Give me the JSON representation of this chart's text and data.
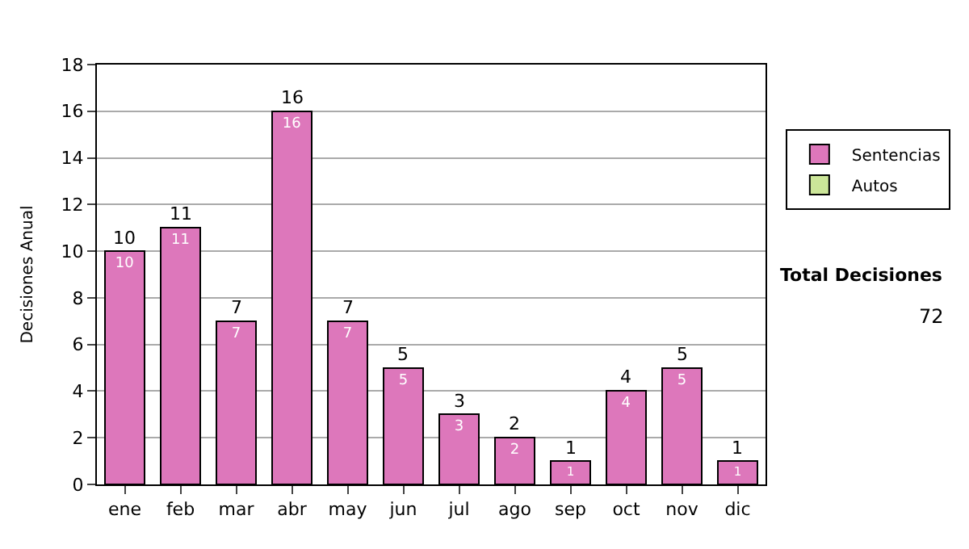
{
  "chart_data": {
    "type": "bar",
    "stacked": true,
    "ylabel": "Decisiones Anual",
    "categories": [
      "ene",
      "feb",
      "mar",
      "abr",
      "may",
      "jun",
      "jul",
      "ago",
      "sep",
      "oct",
      "nov",
      "dic"
    ],
    "series": [
      {
        "name": "Sentencias",
        "color": "#dd77bb",
        "values": [
          10,
          11,
          7,
          16,
          7,
          5,
          3,
          2,
          1,
          4,
          5,
          1
        ]
      },
      {
        "name": "Autos",
        "color": "#cce699",
        "values": [
          null,
          null,
          null,
          null,
          null,
          null,
          null,
          null,
          null,
          null,
          null,
          null
        ]
      }
    ],
    "data_labels": true,
    "totals": [
      "10",
      "11",
      "7",
      "16",
      "7",
      "5",
      "3",
      "2",
      "1",
      "4",
      "5",
      "1"
    ],
    "ylim": [
      0,
      18
    ],
    "yticks": [
      0,
      2,
      4,
      6,
      8,
      10,
      12,
      14,
      16,
      18
    ],
    "grid": "y",
    "legend": "right",
    "annotations": [
      "Total Decisiones",
      "72"
    ]
  }
}
